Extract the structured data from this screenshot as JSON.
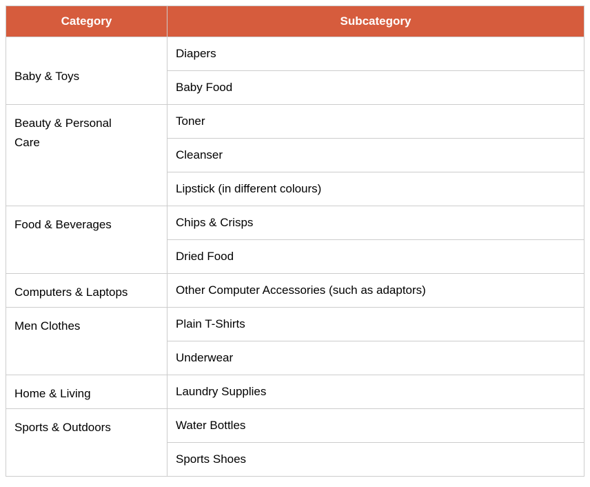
{
  "theme": {
    "header_bg": "#D65C3D",
    "header_text": "#FFFFFF",
    "border": "#CCCCCC",
    "body_text": "#000000",
    "page_bg": "#FFFFFF"
  },
  "table": {
    "headers": {
      "category": "Category",
      "subcategory": "Subcategory"
    },
    "groups": [
      {
        "category": "Baby & Toys",
        "subcategories": [
          "Diapers",
          "Baby Food"
        ]
      },
      {
        "category": "Beauty & Personal Care",
        "subcategories": [
          "Toner",
          "Cleanser",
          "Lipstick (in different colours)"
        ]
      },
      {
        "category": "Food & Beverages",
        "subcategories": [
          "Chips & Crisps",
          "Dried Food"
        ]
      },
      {
        "category": "Computers & Laptops",
        "subcategories": [
          "Other Computer Accessories (such as adaptors)"
        ]
      },
      {
        "category": "Men Clothes",
        "subcategories": [
          "Plain T-Shirts",
          "Underwear"
        ]
      },
      {
        "category": "Home & Living",
        "subcategories": [
          "Laundry Supplies"
        ]
      },
      {
        "category": "Sports & Outdoors",
        "subcategories": [
          "Water Bottles",
          "Sports Shoes"
        ]
      }
    ]
  }
}
